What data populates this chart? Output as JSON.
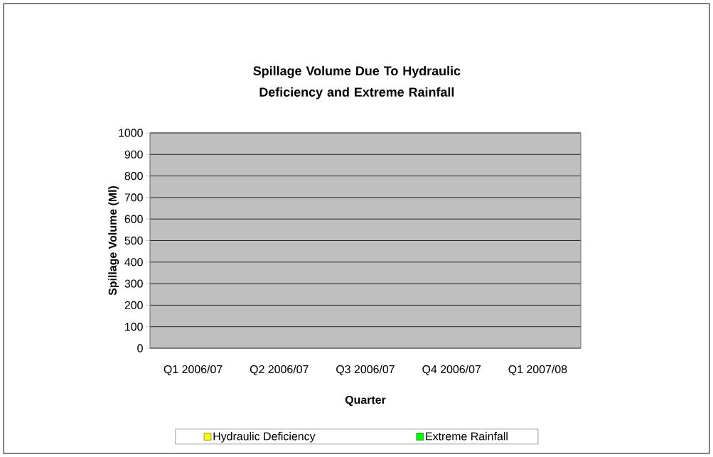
{
  "chart_data": {
    "type": "bar",
    "stacked": true,
    "title": "Spillage Volume Due To Hydraulic Deficiency and Extreme Rainfall",
    "xlabel": "Quarter",
    "ylabel": "Spillage Volume (Ml)",
    "categories": [
      "Q1 2006/07",
      "Q2 2006/07",
      "Q3 2006/07",
      "Q4 2006/07",
      "Q1 2007/08"
    ],
    "series": [
      {
        "name": "Hydraulic Deficiency",
        "color": "#ffff00",
        "values": [
          0,
          0,
          0,
          0,
          0
        ]
      },
      {
        "name": "Extreme Rainfall",
        "color": "#00ff00",
        "values": [
          0,
          0,
          0,
          0,
          0
        ]
      }
    ],
    "ylim": [
      0,
      1000
    ],
    "yticks": [
      0,
      100,
      200,
      300,
      400,
      500,
      600,
      700,
      800,
      900,
      1000
    ],
    "grid": "y",
    "legend": "bottom"
  }
}
